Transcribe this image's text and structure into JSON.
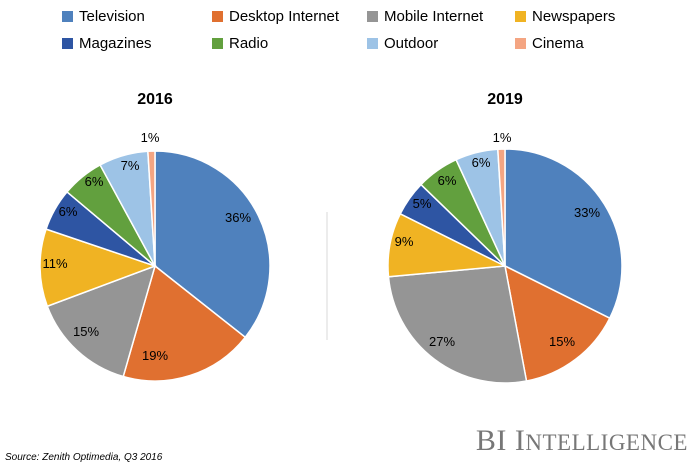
{
  "chart_data": [
    {
      "type": "pie",
      "title": "2016",
      "categories": [
        "Television",
        "Desktop Internet",
        "Mobile Internet",
        "Newspapers",
        "Magazines",
        "Radio",
        "Outdoor",
        "Cinema"
      ],
      "values": [
        36,
        19,
        15,
        11,
        6,
        6,
        7,
        1
      ],
      "labels": [
        "36%",
        "19%",
        "15%",
        "11%",
        "6%",
        "6%",
        "7%",
        "1%"
      ]
    },
    {
      "type": "pie",
      "title": "2019",
      "categories": [
        "Television",
        "Desktop Internet",
        "Mobile Internet",
        "Newspapers",
        "Magazines",
        "Radio",
        "Outdoor",
        "Cinema"
      ],
      "values": [
        33,
        15,
        27,
        9,
        5,
        6,
        6,
        1
      ],
      "labels": [
        "33%",
        "15%",
        "27%",
        "9%",
        "5%",
        "6%",
        "6%",
        "1%"
      ]
    }
  ],
  "legend": [
    {
      "label": "Television",
      "color": "#4f81bd"
    },
    {
      "label": "Desktop Internet",
      "color": "#e07030"
    },
    {
      "label": "Mobile Internet",
      "color": "#959595"
    },
    {
      "label": "Newspapers",
      "color": "#f0b323"
    },
    {
      "label": "Magazines",
      "color": "#2e55a3"
    },
    {
      "label": "Radio",
      "color": "#62a03e"
    },
    {
      "label": "Outdoor",
      "color": "#9dc3e6"
    },
    {
      "label": "Cinema",
      "color": "#f4a582"
    }
  ],
  "source": "Source: Zenith Optimedia, Q3 2016",
  "brand": {
    "part1": "BI",
    "part2": "I",
    "part3": "NTELLIGENCE"
  }
}
